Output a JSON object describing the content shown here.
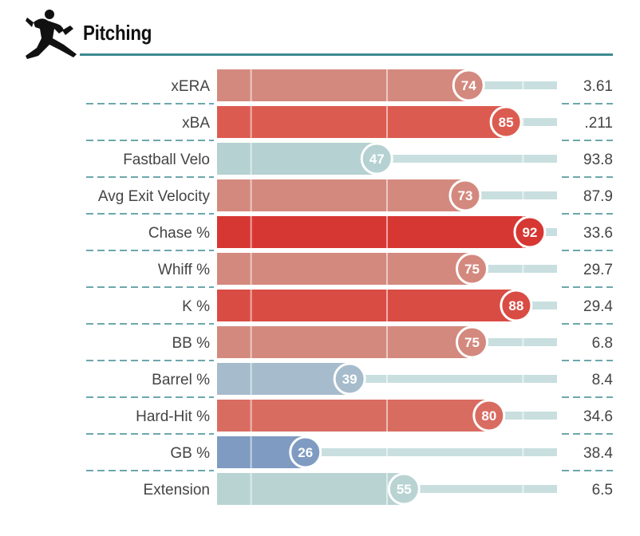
{
  "header": {
    "title": "Pitching",
    "icon": "pitcher-silhouette-icon"
  },
  "colors": {
    "rule": "#3d8a90",
    "track": "#c9dfdf",
    "ticks": "#ffffff"
  },
  "chart_data": {
    "type": "bar",
    "orientation": "horizontal",
    "xlim": [
      0,
      100
    ],
    "xlabel": "",
    "ylabel": "",
    "reference_lines": [
      10,
      50,
      90
    ],
    "categories": [
      "xERA",
      "xBA",
      "Fastball Velo",
      "Avg Exit Velocity",
      "Chase %",
      "Whiff %",
      "K %",
      "BB %",
      "Barrel %",
      "Hard-Hit %",
      "GB %",
      "Extension"
    ],
    "series": [
      {
        "values": [
          74,
          85,
          47,
          73,
          92,
          75,
          88,
          75,
          39,
          80,
          26,
          55
        ],
        "stat_values": [
          "3.61",
          ".211",
          "93.8",
          "87.9",
          "33.6",
          "29.7",
          "29.4",
          "6.8",
          "8.4",
          "34.6",
          "38.4",
          "6.5"
        ],
        "colors": [
          "#d4897e",
          "#dc5b50",
          "#b5d1d2",
          "#d4897e",
          "#d73733",
          "#d4897e",
          "#d94c44",
          "#d4897e",
          "#a6bccc",
          "#d96c61",
          "#7f9bc2",
          "#b9d3d3"
        ]
      }
    ],
    "grid": false,
    "legend": "none"
  }
}
